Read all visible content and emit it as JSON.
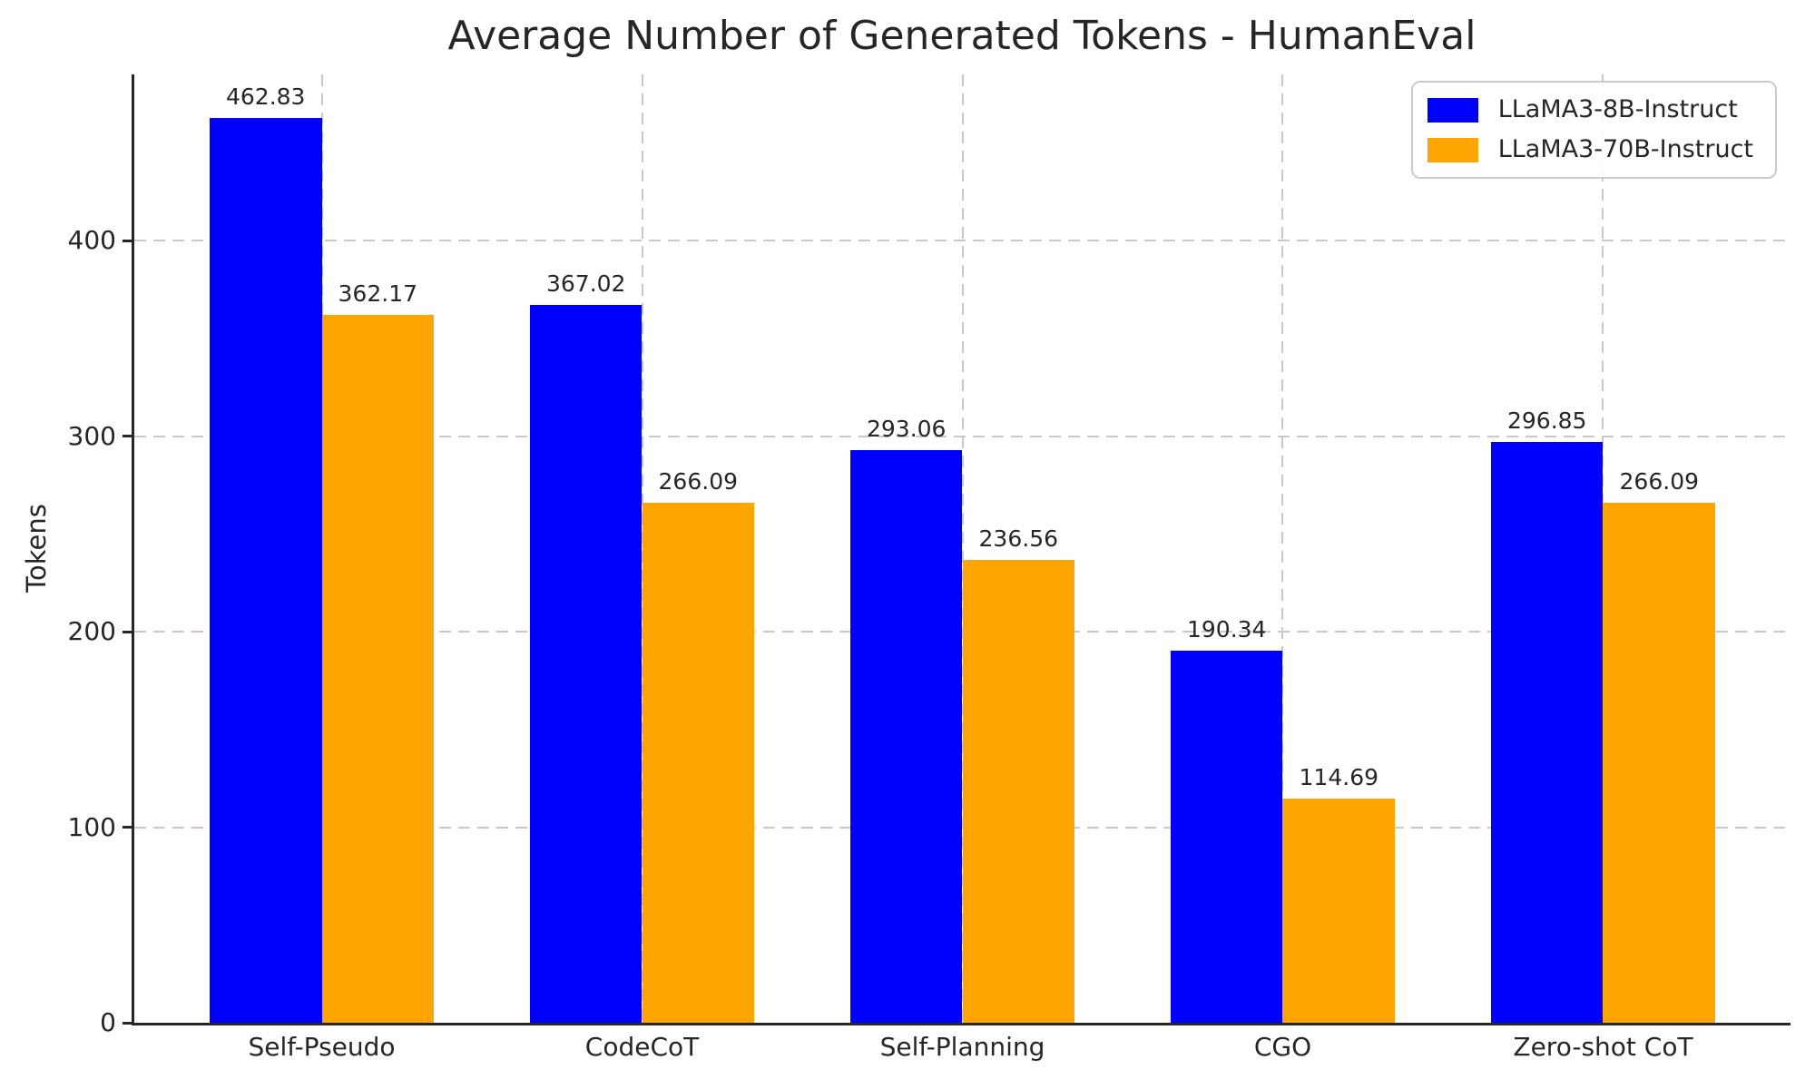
{
  "chart_data": {
    "type": "bar",
    "title": "Average Number of Generated Tokens - HumanEval",
    "xlabel": "",
    "ylabel": "Tokens",
    "categories": [
      "Self-Pseudo",
      "CodeCoT",
      "Self-Planning",
      "CGO",
      "Zero-shot CoT"
    ],
    "series": [
      {
        "name": "LLaMA3-8B-Instruct",
        "color": "#0000ff",
        "values": [
          462.83,
          367.02,
          293.06,
          190.34,
          296.85
        ]
      },
      {
        "name": "LLaMA3-70B-Instruct",
        "color": "#ffa500",
        "values": [
          362.17,
          266.09,
          236.56,
          114.69,
          266.09
        ]
      }
    ],
    "ylim": [
      0,
      485
    ],
    "yticks": [
      0,
      100,
      200,
      300,
      400
    ],
    "grid": true,
    "grid_style": "dashed",
    "bar_value_labels": true,
    "value_label_decimals": 2,
    "legend_position": "upper right"
  },
  "colors": {
    "background": "#ffffff",
    "grid": "#c9c9c9",
    "spine": "#262626",
    "text": "#262626",
    "legend_border": "#cbcbcb"
  }
}
